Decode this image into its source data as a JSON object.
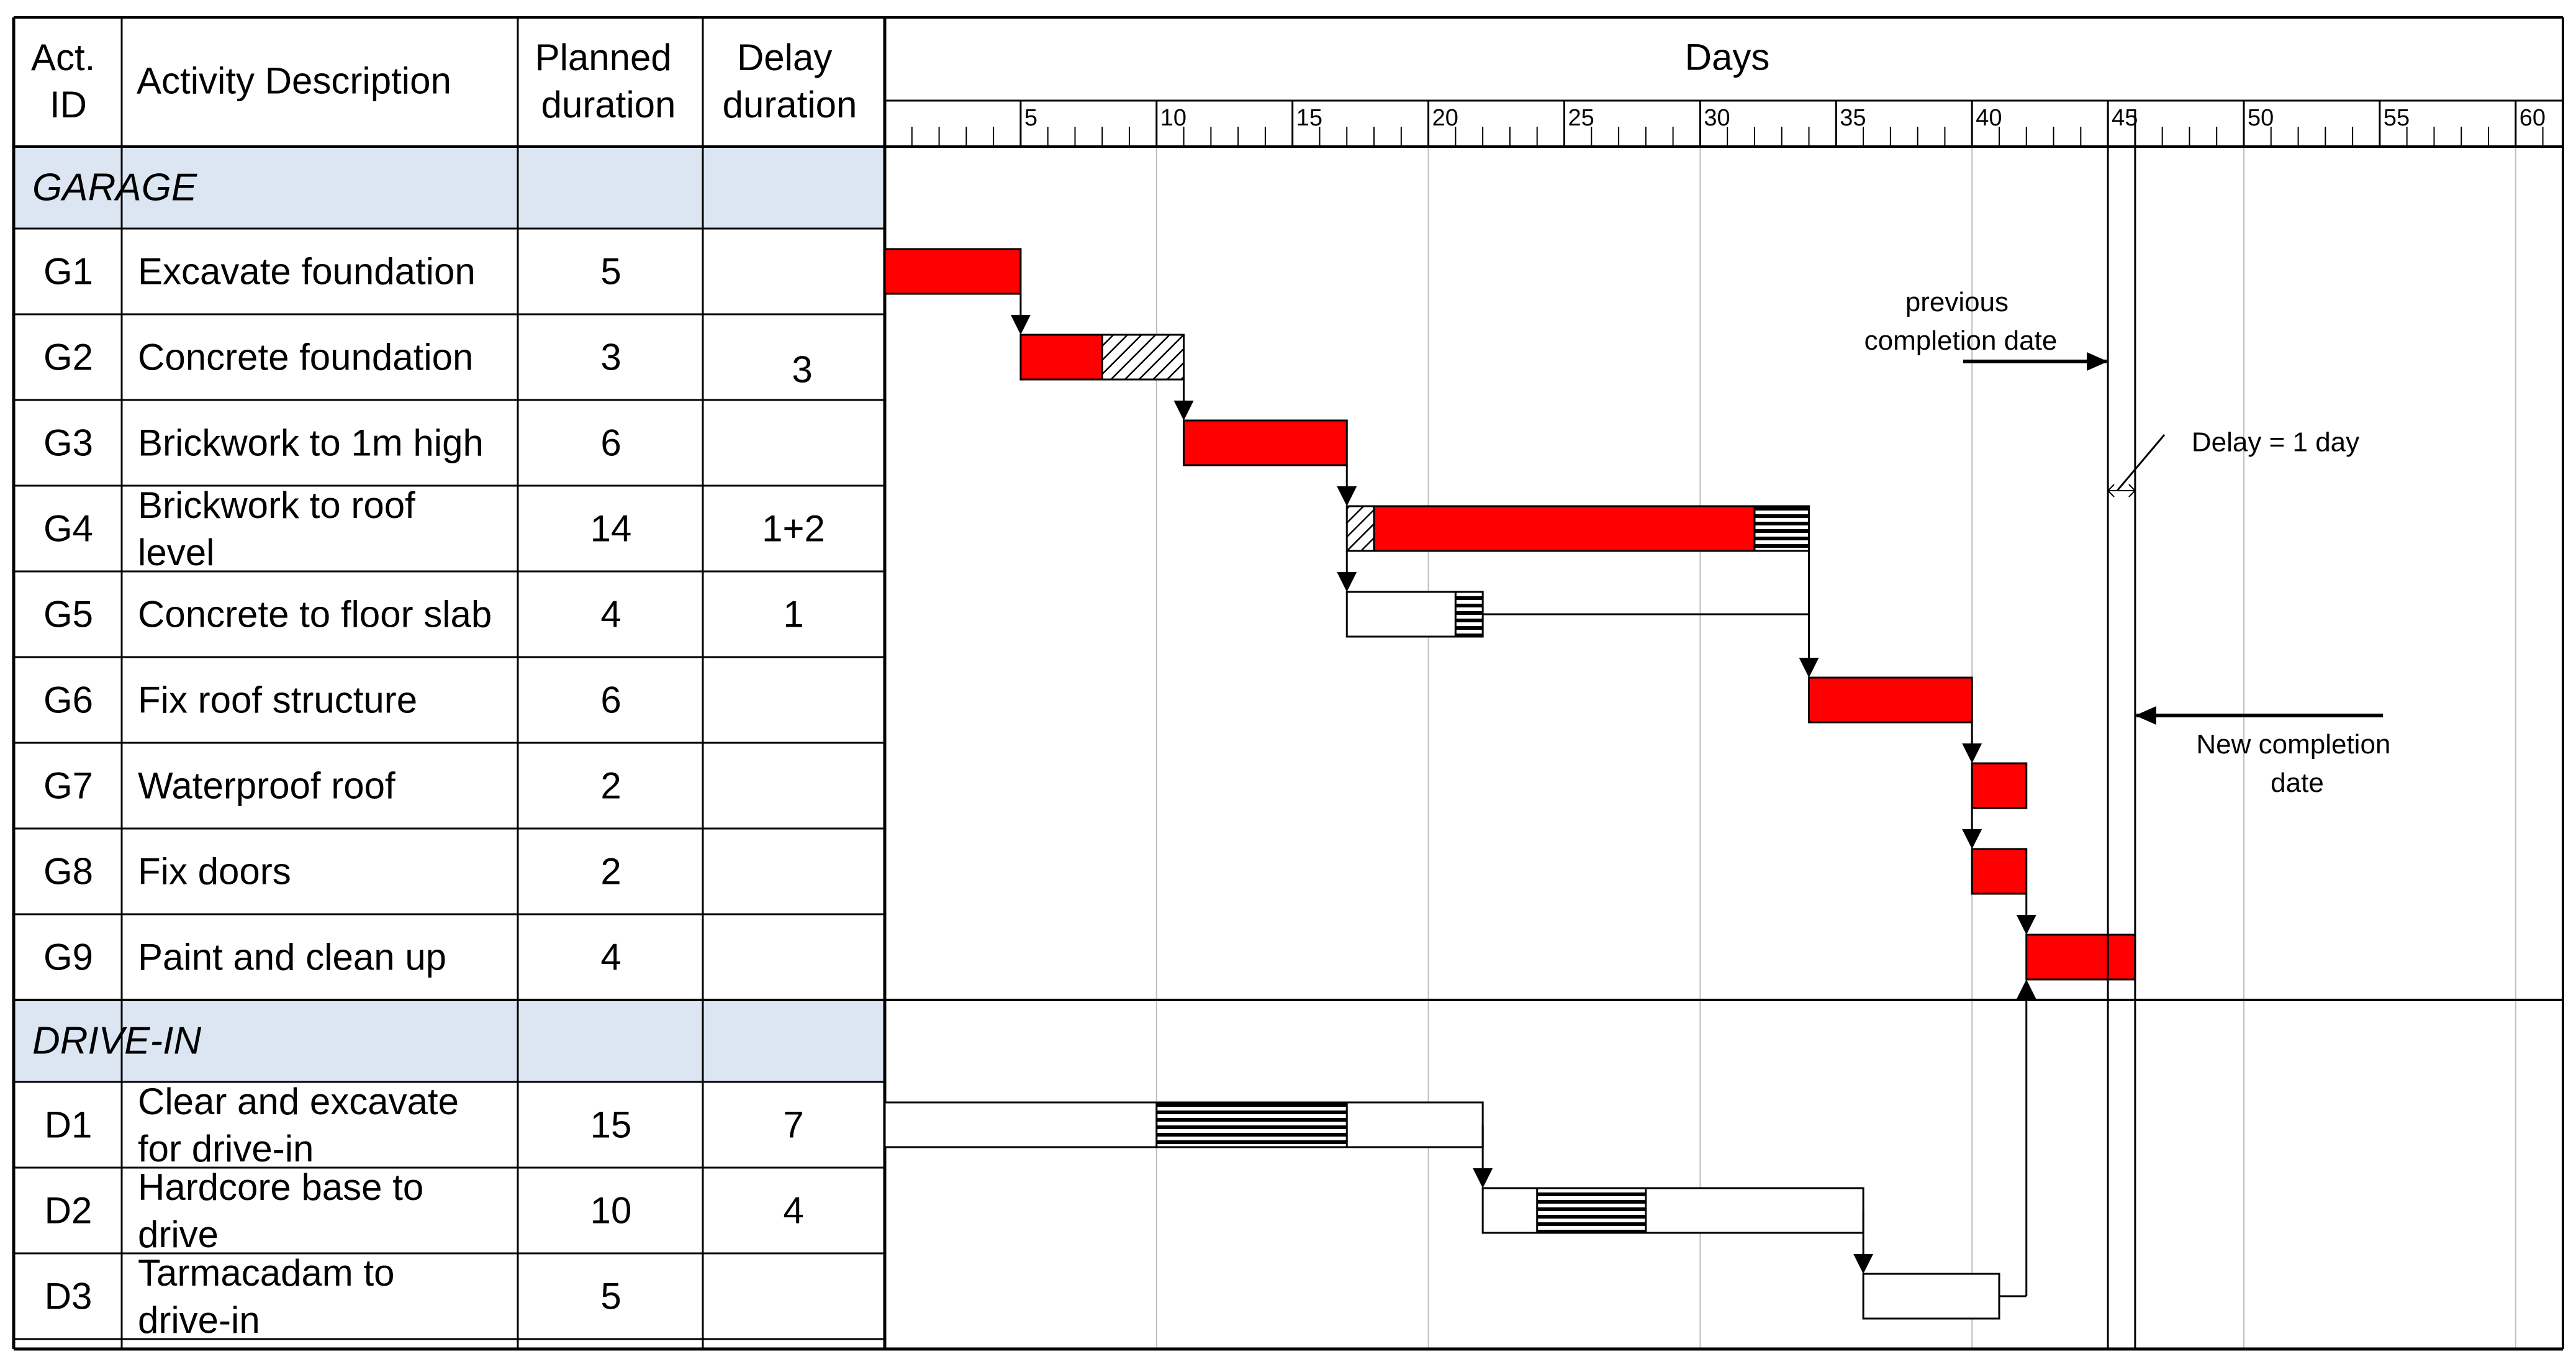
{
  "header": {
    "act_id_line1": "Act.",
    "act_id_line2": "ID",
    "activity_description": "Activity Description",
    "planned_line1": "Planned",
    "planned_line2": "duration",
    "delay_line1": "Delay",
    "delay_line2": "duration",
    "days": "Days"
  },
  "day_ticks": [
    "5",
    "10",
    "15",
    "20",
    "25",
    "30",
    "35",
    "40",
    "45",
    "50",
    "55",
    "60"
  ],
  "sections": [
    {
      "name": "GARAGE",
      "rows": [
        {
          "id": "G1",
          "desc": [
            "Excavate foundation"
          ],
          "planned": "5",
          "delay": ""
        },
        {
          "id": "G2",
          "desc": [
            "Concrete foundation"
          ],
          "planned": "3",
          "delay": "3"
        },
        {
          "id": "G3",
          "desc": [
            "Brickwork to 1m high"
          ],
          "planned": "6",
          "delay": ""
        },
        {
          "id": "G4",
          "desc": [
            "Brickwork to roof",
            "level"
          ],
          "planned": "14",
          "delay": "1+2"
        },
        {
          "id": "G5",
          "desc": [
            "Concrete to floor slab"
          ],
          "planned": "4",
          "delay": "1"
        },
        {
          "id": "G6",
          "desc": [
            "Fix roof structure"
          ],
          "planned": "6",
          "delay": ""
        },
        {
          "id": "G7",
          "desc": [
            "Waterproof roof"
          ],
          "planned": "2",
          "delay": ""
        },
        {
          "id": "G8",
          "desc": [
            "Fix doors"
          ],
          "planned": "2",
          "delay": ""
        },
        {
          "id": "G9",
          "desc": [
            "Paint and clean up"
          ],
          "planned": "4",
          "delay": ""
        }
      ]
    },
    {
      "name": "DRIVE-IN",
      "rows": [
        {
          "id": "D1",
          "desc": [
            "Clear and excavate",
            "for drive-in"
          ],
          "planned": "15",
          "delay": "7"
        },
        {
          "id": "D2",
          "desc": [
            "Hardcore base to",
            "drive"
          ],
          "planned": "10",
          "delay": "4"
        },
        {
          "id": "D3",
          "desc": [
            "Tarmacadam to",
            "drive-in"
          ],
          "planned": "5",
          "delay": ""
        }
      ]
    }
  ],
  "bars": [
    {
      "row": 0,
      "start": 0,
      "end": 5,
      "kind": "critical"
    },
    {
      "row": 1,
      "start": 5,
      "end": 8,
      "kind": "critical"
    },
    {
      "row": 1,
      "start": 8,
      "end": 11,
      "kind": "delay-diagonal"
    },
    {
      "row": 2,
      "start": 11,
      "end": 17,
      "kind": "critical"
    },
    {
      "row": 3,
      "start": 17,
      "end": 18,
      "kind": "delay-diagonal"
    },
    {
      "row": 3,
      "start": 18,
      "end": 32,
      "kind": "critical"
    },
    {
      "row": 3,
      "start": 32,
      "end": 34,
      "kind": "delay-horizontal"
    },
    {
      "row": 4,
      "start": 17,
      "end": 21,
      "kind": "noncritical"
    },
    {
      "row": 4,
      "start": 21,
      "end": 22,
      "kind": "delay-horizontal"
    },
    {
      "row": 5,
      "start": 34,
      "end": 40,
      "kind": "critical"
    },
    {
      "row": 6,
      "start": 40,
      "end": 42,
      "kind": "critical"
    },
    {
      "row": 7,
      "start": 40,
      "end": 42,
      "kind": "critical"
    },
    {
      "row": 8,
      "start": 42,
      "end": 46,
      "kind": "critical"
    },
    {
      "row": 9,
      "start": 0,
      "end": 22,
      "kind": "noncritical"
    },
    {
      "row": 9,
      "start": 10,
      "end": 17,
      "kind": "delay-horizontal"
    },
    {
      "row": 10,
      "start": 22,
      "end": 36,
      "kind": "noncritical"
    },
    {
      "row": 10,
      "start": 24,
      "end": 28,
      "kind": "delay-horizontal"
    },
    {
      "row": 11,
      "start": 36,
      "end": 41,
      "kind": "noncritical"
    }
  ],
  "colors": {
    "critical": "#ff0000",
    "section_band": "#dce6f2",
    "grid": "#bfbfbf",
    "line": "#000000"
  },
  "annotations": {
    "previous_completion_line1": "previous",
    "previous_completion_line2": "completion date",
    "delay_note": "Delay = 1 day",
    "new_completion_line1": "New completion",
    "new_completion_line2": "date"
  },
  "milestones": {
    "previous_completion_day": 45,
    "new_completion_day": 46
  }
}
